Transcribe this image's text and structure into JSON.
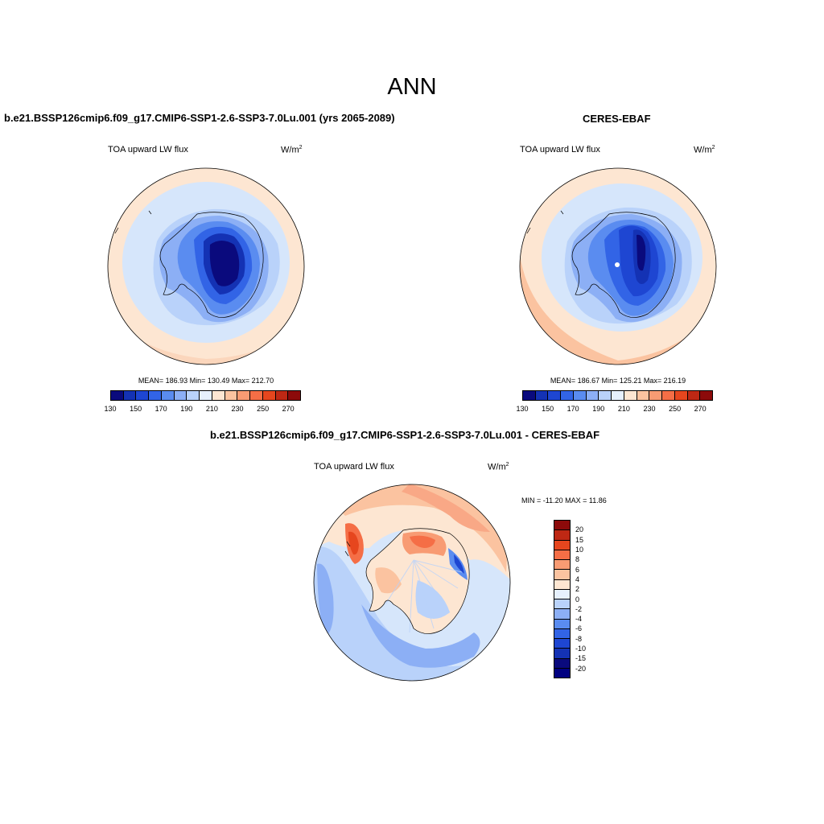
{
  "main_title": "ANN",
  "panels": [
    {
      "title": "b.e21.BSSP126cmip6.f09_g17.CMIP6-SSP1-2.6-SSP3-7.0Lu.001 (yrs 2065-2089)",
      "variable": "TOA upward LW flux",
      "unit_base": "W/m",
      "unit_exp": "2",
      "stats": "MEAN= 186.93  Min= 130.49  Max= 212.70"
    },
    {
      "title": "CERES-EBAF",
      "variable": "TOA upward LW flux",
      "unit_base": "W/m",
      "unit_exp": "2",
      "stats": "MEAN= 186.67  Min= 125.21  Max= 216.19"
    },
    {
      "title": "b.e21.BSSP126cmip6.f09_g17.CMIP6-SSP1-2.6-SSP3-7.0Lu.001 - CERES-EBAF",
      "variable": "TOA upward LW flux",
      "unit_base": "W/m",
      "unit_exp": "2",
      "stats": "MIN = -11.20 MAX =  11.86"
    }
  ],
  "abs_colorbar": {
    "colors": [
      "#0a0a7d",
      "#1432b4",
      "#1e46d2",
      "#3264e6",
      "#5a8cf0",
      "#8caff5",
      "#b9d2fa",
      "#e6f0fd",
      "#fde6d2",
      "#fbc3a0",
      "#f89b73",
      "#f56e46",
      "#e6461e",
      "#be2814",
      "#8c0a0a"
    ],
    "tick_labels": [
      "130",
      "150",
      "170",
      "190",
      "210",
      "230",
      "250",
      "270"
    ]
  },
  "diff_colorbar": {
    "colors": [
      "#8c0a0a",
      "#be2814",
      "#e6461e",
      "#f56e46",
      "#f89b73",
      "#fbc3a0",
      "#fde6d2",
      "#e6f0fd",
      "#b9d2fa",
      "#8caff5",
      "#5a8cf0",
      "#3264e6",
      "#1e46d2",
      "#1432b4",
      "#0a0a7d",
      "#000080"
    ],
    "tick_labels": [
      "20",
      "15",
      "10",
      "8",
      "6",
      "4",
      "2",
      "0",
      "-2",
      "-4",
      "-6",
      "-8",
      "-10",
      "-15",
      "-20"
    ]
  }
}
